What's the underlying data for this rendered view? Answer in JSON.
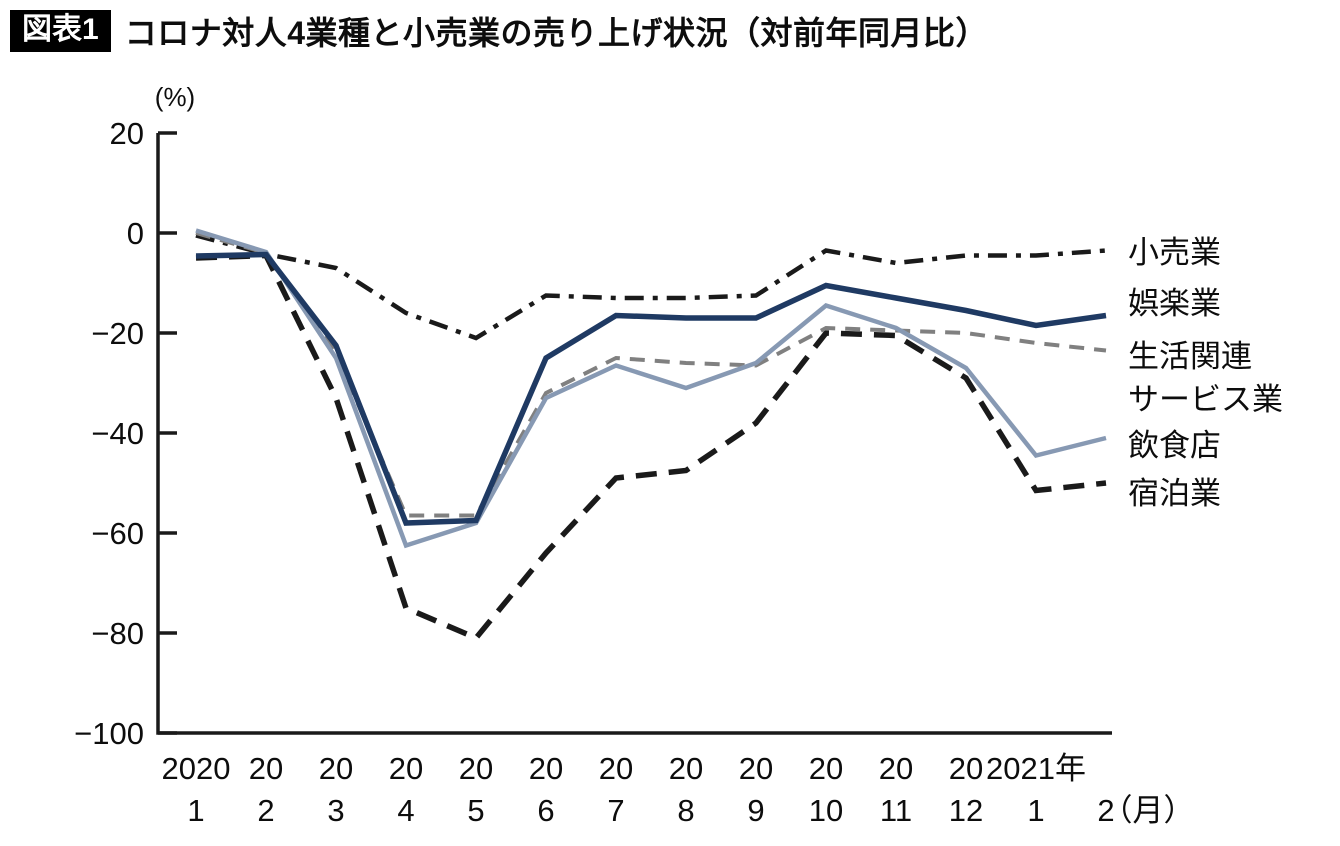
{
  "header": {
    "badge": "図表1",
    "title": "コロナ対人4業種と小売業の売り上げ状況（対前年同月比）"
  },
  "chart_data": {
    "type": "line",
    "title": "コロナ対人4業種と小売業の売り上げ状況（対前年同月比）",
    "y_unit_label": "(%)",
    "x_unit_label": "（月）",
    "ylim": [
      -100,
      20
    ],
    "grid": false,
    "legend_position": "right",
    "y_ticks": [
      20,
      0,
      -20,
      -40,
      -60,
      -80,
      -100
    ],
    "y_tick_labels": [
      "20",
      "0",
      "−20",
      "−40",
      "−60",
      "−80",
      "−100"
    ],
    "x_labels_year": [
      "2020",
      "20",
      "20",
      "20",
      "20",
      "20",
      "20",
      "20",
      "20",
      "20",
      "20",
      "20",
      "2021年",
      ""
    ],
    "x_labels_month": [
      "1",
      "2",
      "3",
      "4",
      "5",
      "6",
      "7",
      "8",
      "9",
      "10",
      "11",
      "12",
      "1",
      "2"
    ],
    "categories": [
      "2020-1",
      "2020-2",
      "2020-3",
      "2020-4",
      "2020-5",
      "2020-6",
      "2020-7",
      "2020-8",
      "2020-9",
      "2020-10",
      "2020-11",
      "2020-12",
      "2021-1",
      "2021-2"
    ],
    "series": [
      {
        "key": "retail",
        "name": "小売業",
        "legend_lines": [
          "小売業"
        ],
        "color": "#1a1a1a",
        "line_style": "dash-dot",
        "values": [
          -0.5,
          -4.2,
          -7,
          -16,
          -21,
          -12.5,
          -13,
          -13,
          -12.5,
          -3.5,
          -6,
          -4.5,
          -4.5,
          -3.5
        ]
      },
      {
        "key": "amusement",
        "name": "娯楽業",
        "legend_lines": [
          "娯楽業"
        ],
        "color": "#1f3a63",
        "line_style": "solid",
        "values": [
          -4.6,
          -4.3,
          -22.5,
          -58,
          -57.5,
          -25,
          -16.5,
          -17,
          -17,
          -10.5,
          -13,
          -15.5,
          -18.5,
          -16.5
        ]
      },
      {
        "key": "life-related-services",
        "name": "生活関連サービス業",
        "legend_lines": [
          "生活関連",
          "サービス業"
        ],
        "color": "#808080",
        "line_style": "dashed",
        "values": [
          0,
          -4,
          -24,
          -56.5,
          -56.5,
          -32,
          -25,
          -26,
          -26.5,
          -19,
          -19.5,
          -20,
          -22,
          -23.5
        ]
      },
      {
        "key": "restaurants",
        "name": "飲食店",
        "legend_lines": [
          "飲食店"
        ],
        "color": "#8799b3",
        "line_style": "solid",
        "values": [
          0.5,
          -3.8,
          -25,
          -62.5,
          -58,
          -33,
          -26.5,
          -31,
          -26,
          -14.5,
          -19,
          -27,
          -44.5,
          -41
        ]
      },
      {
        "key": "accommodations",
        "name": "宿泊業",
        "legend_lines": [
          "宿泊業"
        ],
        "color": "#1a1a1a",
        "line_style": "long-dash",
        "values": [
          -5,
          -4.5,
          -33,
          -75,
          -81,
          -64,
          -49,
          -47.5,
          -38,
          -20,
          -20.5,
          -29,
          -51.5,
          -50
        ]
      }
    ]
  }
}
